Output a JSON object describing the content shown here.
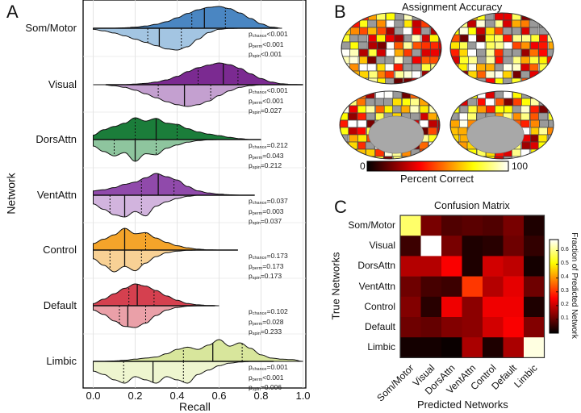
{
  "chart_data": [
    {
      "type": "violin",
      "panel": "A",
      "xlabel": "Recall",
      "ylabel": "Network",
      "xlim": [
        0.0,
        1.0
      ],
      "xticks": [
        "0.0",
        "0.2",
        "0.4",
        "0.6",
        "0.8",
        "1.0"
      ],
      "density_grid": [
        0,
        0.05,
        0.1,
        0.15,
        0.2,
        0.25,
        0.3,
        0.35,
        0.4,
        0.45,
        0.5,
        0.55,
        0.6,
        0.65,
        0.7,
        0.75,
        0.8,
        0.85,
        0.9,
        0.95,
        1.0
      ],
      "networks": [
        {
          "name": "Som/Motor",
          "range": [
            0.0,
            0.88
          ],
          "top_color": "#4a86c2",
          "bottom_color": "#a3c5e2",
          "top": {
            "quartiles": [
              0.47,
              0.53,
              0.63
            ],
            "density": [
              0,
              0,
              0,
              0.02,
              0.05,
              0.1,
              0.18,
              0.3,
              0.48,
              0.68,
              0.85,
              0.96,
              1,
              0.9,
              0.7,
              0.45,
              0.2,
              0.05,
              0,
              0,
              0
            ]
          },
          "bottom": {
            "quartiles": [
              0.26,
              0.315,
              0.42
            ],
            "density": [
              0.05,
              0.12,
              0.22,
              0.35,
              0.5,
              0.65,
              0.8,
              0.95,
              1,
              0.85,
              0.5,
              0.2,
              0.05,
              0.01,
              0,
              0,
              0,
              0,
              0,
              0,
              0
            ]
          },
          "p": {
            "chance": "<0.001",
            "perm": "<0.001",
            "spin": "<0.001"
          }
        },
        {
          "name": "Visual",
          "range": [
            0.06,
            1.0
          ],
          "top_color": "#7b2a91",
          "bottom_color": "#c4a0d0",
          "top": {
            "quartiles": [
              0.5,
              0.62,
              0.69
            ],
            "density": [
              0,
              0,
              0,
              0,
              0.03,
              0.06,
              0.12,
              0.22,
              0.38,
              0.6,
              0.78,
              0.9,
              1,
              0.92,
              0.75,
              0.5,
              0.28,
              0.12,
              0.04,
              0.01,
              0
            ]
          },
          "bottom": {
            "quartiles": [
              0.31,
              0.435,
              0.56
            ],
            "density": [
              0,
              0,
              0.05,
              0.12,
              0.25,
              0.42,
              0.6,
              0.78,
              0.92,
              1,
              0.92,
              0.75,
              0.5,
              0.28,
              0.12,
              0.04,
              0,
              0,
              0,
              0,
              0
            ]
          },
          "p": {
            "chance": "<0.001",
            "perm": "<0.001",
            "spin": "=0.027"
          }
        },
        {
          "name": "DorsAttn",
          "range": [
            0.0,
            0.8
          ],
          "top_color": "#1b7d3a",
          "bottom_color": "#8ec59e",
          "top": {
            "quartiles": [
              0.2,
              0.3,
              0.4
            ],
            "density": [
              0.2,
              0.45,
              0.6,
              0.75,
              1,
              0.85,
              0.97,
              0.75,
              0.7,
              0.5,
              0.35,
              0.25,
              0.18,
              0.1,
              0.04,
              0,
              0,
              0,
              0,
              0,
              0
            ]
          },
          "bottom": {
            "quartiles": [
              0.1,
              0.2,
              0.3
            ],
            "density": [
              0.3,
              0.55,
              0.75,
              0.6,
              1,
              0.65,
              0.7,
              0.4,
              0.25,
              0.12,
              0.05,
              0.01,
              0,
              0,
              0,
              0,
              0,
              0,
              0,
              0,
              0
            ]
          },
          "p": {
            "chance": "=0.212",
            "perm": "=0.043",
            "spin": "=0.212"
          }
        },
        {
          "name": "VentAttn",
          "range": [
            0.0,
            0.77
          ],
          "top_color": "#904aab",
          "bottom_color": "#d2b4de",
          "top": {
            "quartiles": [
              0.23,
              0.31,
              0.385
            ],
            "density": [
              0.2,
              0.25,
              0.35,
              0.5,
              0.6,
              0.8,
              1,
              0.85,
              0.7,
              0.4,
              0.2,
              0.1,
              0.05,
              0.02,
              0,
              0,
              0,
              0,
              0,
              0,
              0
            ]
          },
          "bottom": {
            "quartiles": [
              0.08,
              0.15,
              0.23
            ],
            "density": [
              0.4,
              0.65,
              0.9,
              1,
              0.75,
              0.95,
              0.5,
              0.3,
              0.15,
              0.05,
              0,
              0,
              0,
              0,
              0,
              0,
              0,
              0,
              0,
              0,
              0
            ]
          },
          "p": {
            "chance": "=0.037",
            "perm": "=0.003",
            "spin": "=0.037"
          }
        },
        {
          "name": "Control",
          "range": [
            0.0,
            0.69
          ],
          "top_color": "#f4a42a",
          "bottom_color": "#f8d195",
          "top": {
            "quartiles": [
              0.15,
              0.15,
              0.25
            ],
            "density": [
              0.3,
              0.5,
              0.7,
              1,
              0.75,
              0.8,
              0.55,
              0.35,
              0.2,
              0.1,
              0.04,
              0.01,
              0,
              0,
              0,
              0,
              0,
              0,
              0,
              0,
              0
            ]
          },
          "bottom": {
            "quartiles": [
              0.08,
              0.15,
              0.23
            ],
            "density": [
              0.4,
              0.7,
              1,
              0.75,
              0.95,
              0.6,
              0.3,
              0.12,
              0.05,
              0.01,
              0,
              0,
              0,
              0,
              0,
              0,
              0,
              0,
              0,
              0,
              0
            ]
          },
          "p": {
            "chance": "=0.173",
            "perm": "=0.173",
            "spin": "=0.173"
          }
        },
        {
          "name": "Default",
          "range": [
            0.0,
            0.58
          ],
          "top_color": "#d5404f",
          "bottom_color": "#eaa0a8",
          "top": {
            "quartiles": [
              0.17,
              0.21,
              0.29
            ],
            "density": [
              0.1,
              0.3,
              0.55,
              0.8,
              1,
              0.9,
              0.7,
              0.45,
              0.25,
              0.1,
              0.04,
              0.01,
              0,
              0,
              0,
              0,
              0,
              0,
              0,
              0,
              0
            ]
          },
          "bottom": {
            "quartiles": [
              0.125,
              0.165,
              0.25
            ],
            "density": [
              0.2,
              0.4,
              0.7,
              0.95,
              1,
              0.8,
              0.45,
              0.2,
              0.08,
              0.02,
              0,
              0,
              0,
              0,
              0,
              0,
              0,
              0,
              0,
              0,
              0
            ]
          },
          "p": {
            "chance": "=0.102",
            "perm": "=0.028",
            "spin": "=0.233"
          }
        },
        {
          "name": "Limbic",
          "range": [
            0.0,
            0.86
          ],
          "top_color": "#d8e69c",
          "bottom_color": "#eef5cf",
          "top": {
            "quartiles": [
              0.43,
              0.57,
              0.71
            ],
            "density": [
              0,
              0,
              0.02,
              0.05,
              0.1,
              0.15,
              0.2,
              0.35,
              0.55,
              0.65,
              0.55,
              0.75,
              1,
              0.7,
              0.85,
              0.6,
              0.3,
              0.15,
              0.1,
              0.08,
              0
            ]
          },
          "bottom": {
            "quartiles": [
              0.145,
              0.285,
              0.43
            ],
            "density": [
              0.45,
              0.6,
              0.85,
              1,
              0.7,
              0.85,
              1,
              0.7,
              0.85,
              1,
              0.6,
              0.4,
              0.2,
              0.08,
              0.03,
              0,
              0,
              0,
              0,
              0,
              0
            ]
          },
          "p": {
            "chance": "=0.001",
            "perm": "<0.001",
            "spin": "=0.006"
          }
        }
      ]
    },
    {
      "type": "heatmap",
      "panel": "C",
      "title": "Confusion Matrix",
      "xlabel": "Predicted Networks",
      "ylabel": "True Networks",
      "rows": [
        "Som/Motor",
        "Visual",
        "DorsAttn",
        "VentAttn",
        "Control",
        "Default",
        "Limbic"
      ],
      "cols": [
        "Som/Motor",
        "Visual",
        "DorsAttn",
        "VentAttn",
        "Control",
        "Default",
        "Limbic"
      ],
      "values": [
        [
          0.58,
          0.12,
          0.08,
          0.09,
          0.08,
          0.12,
          0.03
        ],
        [
          0.06,
          0.68,
          0.12,
          0.03,
          0.04,
          0.11,
          0.05
        ],
        [
          0.18,
          0.18,
          0.25,
          0.03,
          0.21,
          0.19,
          0.02
        ],
        [
          0.11,
          0.07,
          0.06,
          0.31,
          0.18,
          0.23,
          0.11
        ],
        [
          0.13,
          0.04,
          0.24,
          0.14,
          0.24,
          0.24,
          0.03
        ],
        [
          0.11,
          0.1,
          0.13,
          0.14,
          0.21,
          0.25,
          0.13
        ],
        [
          0.02,
          0.02,
          0.01,
          0.17,
          0.03,
          0.17,
          0.66
        ]
      ],
      "colorbar_label": "Fraction of Predicted Network",
      "colorbar_range": [
        0,
        0.68
      ],
      "colorbar_ticks": [
        "0.1",
        "0.2",
        "0.3",
        "0.4",
        "0.5",
        "0.6"
      ]
    }
  ],
  "panels": {
    "a_letter": "A",
    "b_letter": "B",
    "c_letter": "C",
    "b_title": "Assignment Accuracy",
    "b_colorbar_min": "0",
    "b_colorbar_max": "100",
    "b_colorbar_label": "Percent Correct"
  },
  "p_labels": {
    "chance": "chance",
    "perm": "perm",
    "spin": "spin",
    "p": "p"
  }
}
